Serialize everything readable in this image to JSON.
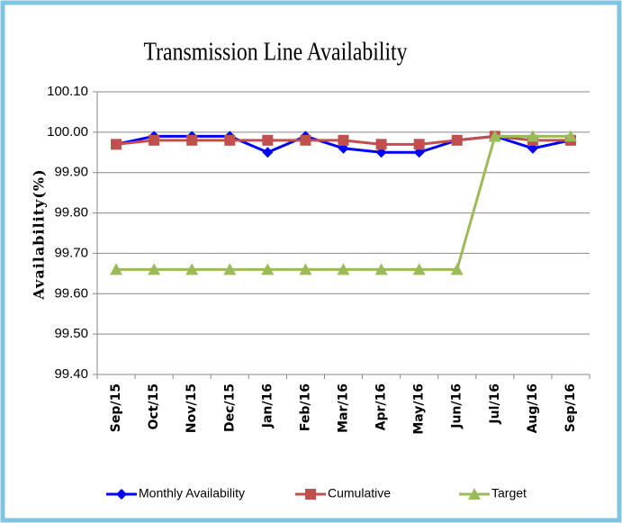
{
  "chart_data": {
    "type": "line",
    "title": "Transmission  Line Availability",
    "y_label": "Availability(%)",
    "categories": [
      "Sep/15",
      "Oct/15",
      "Nov/15",
      "Dec/15",
      "Jan/16",
      "Feb/16",
      "Mar/16",
      "Apr/16",
      "May/16",
      "Jun/16",
      "Jul/16",
      "Aug/16",
      "Sep/16"
    ],
    "series": [
      {
        "name": "Monthly Availability",
        "color": "#0000ff",
        "marker": "diamond",
        "values": [
          99.97,
          99.99,
          99.99,
          99.99,
          99.95,
          99.99,
          99.96,
          99.95,
          99.95,
          99.98,
          99.99,
          99.96,
          99.98
        ]
      },
      {
        "name": "Cumulative",
        "color": "#c0504d",
        "marker": "square",
        "values": [
          99.97,
          99.98,
          99.98,
          99.98,
          99.98,
          99.98,
          99.98,
          99.97,
          99.97,
          99.98,
          99.99,
          99.98,
          99.98
        ]
      },
      {
        "name": "Target",
        "color": "#9bbb59",
        "marker": "triangle",
        "values": [
          99.66,
          99.66,
          99.66,
          99.66,
          99.66,
          99.66,
          99.66,
          99.66,
          99.66,
          99.66,
          99.99,
          99.99,
          99.99
        ]
      }
    ],
    "ylim": [
      99.4,
      100.1
    ],
    "yticks": [
      {
        "value": 99.4,
        "label": "99.40"
      },
      {
        "value": 99.5,
        "label": "99.50"
      },
      {
        "value": 99.6,
        "label": "99.60"
      },
      {
        "value": 99.7,
        "label": "99.70"
      },
      {
        "value": 99.8,
        "label": "99.80"
      },
      {
        "value": 99.9,
        "label": "99.90"
      },
      {
        "value": 100,
        "label": "100.00"
      },
      {
        "value": 100.1,
        "label": "100.10"
      }
    ],
    "grid": true,
    "legend": "bottom"
  }
}
